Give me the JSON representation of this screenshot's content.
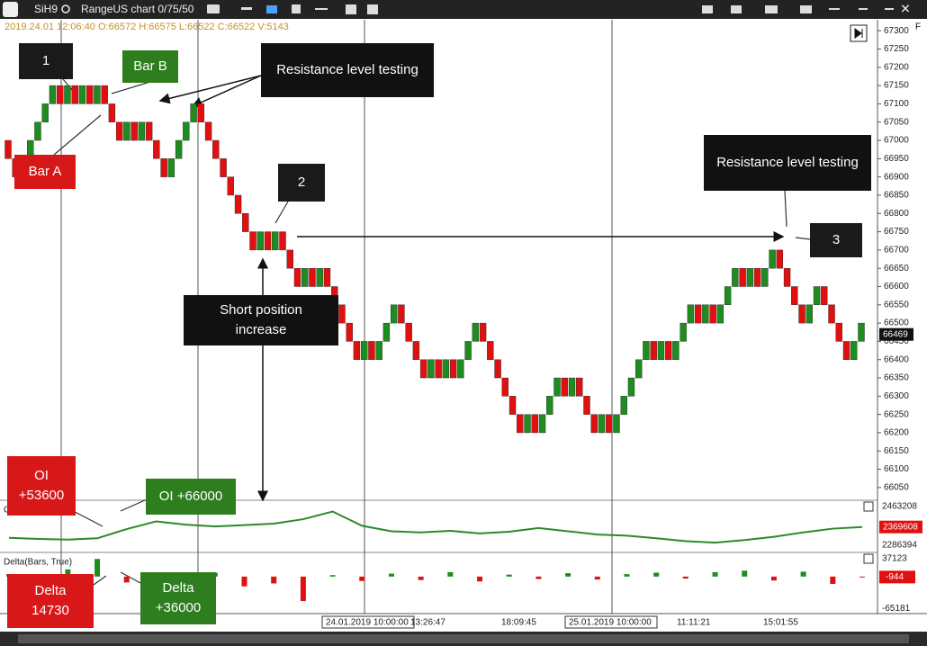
{
  "toolbar": {
    "symbol": "SiH9",
    "chart_name": "RangeUS chart 0/75/50"
  },
  "info_line": "2019.24.01 12:06:40  O:66572  H:66575  L:66522  C:66522  V:5143",
  "axis_flag": "F",
  "chart_data": {
    "type": "candlestick",
    "open": [
      67000,
      66950,
      66900,
      66950,
      67000,
      67050,
      67100,
      67150,
      67100,
      67150,
      67100,
      67150,
      67100,
      67150,
      67100,
      67050,
      67000,
      67050,
      67000,
      67050,
      67000,
      66950,
      66900,
      66950,
      67000,
      67050,
      67100,
      67050,
      67000,
      66950,
      66900,
      66850,
      66800,
      66750,
      66700,
      66750,
      66700,
      66750,
      66700,
      66650,
      66600,
      66650,
      66600,
      66650,
      66600,
      66550,
      66500,
      66450,
      66400,
      66450,
      66400,
      66450,
      66500,
      66550,
      66500,
      66450,
      66400,
      66350,
      66400,
      66350,
      66400,
      66350,
      66400,
      66450,
      66500,
      66450,
      66400,
      66350,
      66300,
      66250,
      66200,
      66250,
      66200,
      66250,
      66300,
      66350,
      66300,
      66350,
      66300,
      66250,
      66200,
      66250,
      66200,
      66250,
      66300,
      66350,
      66400,
      66450,
      66400,
      66450,
      66400,
      66450,
      66500,
      66550,
      66500,
      66550,
      66500,
      66550,
      66600,
      66650,
      66600,
      66650,
      66600,
      66650,
      66700,
      66650,
      66600,
      66550,
      66500,
      66550,
      66600,
      66550,
      66500,
      66450,
      66400,
      66450
    ],
    "close": [
      66950,
      66900,
      66950,
      67000,
      67050,
      67100,
      67150,
      67100,
      67150,
      67100,
      67150,
      67100,
      67150,
      67100,
      67050,
      67000,
      67050,
      67000,
      67050,
      67000,
      66950,
      66900,
      66950,
      67000,
      67050,
      67100,
      67050,
      67000,
      66950,
      66900,
      66850,
      66800,
      66750,
      66700,
      66750,
      66700,
      66750,
      66700,
      66650,
      66600,
      66650,
      66600,
      66650,
      66600,
      66550,
      66500,
      66450,
      66400,
      66450,
      66400,
      66450,
      66500,
      66550,
      66500,
      66450,
      66400,
      66350,
      66400,
      66350,
      66400,
      66350,
      66400,
      66450,
      66500,
      66450,
      66400,
      66350,
      66300,
      66250,
      66200,
      66250,
      66200,
      66250,
      66300,
      66350,
      66300,
      66350,
      66300,
      66250,
      66200,
      66250,
      66200,
      66250,
      66300,
      66350,
      66400,
      66450,
      66400,
      66450,
      66400,
      66450,
      66500,
      66550,
      66500,
      66550,
      66500,
      66550,
      66600,
      66650,
      66600,
      66650,
      66600,
      66650,
      66700,
      66650,
      66600,
      66550,
      66500,
      66550,
      66600,
      66550,
      66500,
      66450,
      66400,
      66450,
      66500
    ],
    "up_color": "#1e8c1e",
    "down_color": "#e01010",
    "ylim": [
      66030,
      67330
    ],
    "yticks": [
      66050,
      66100,
      66150,
      66200,
      66250,
      66300,
      66350,
      66400,
      66450,
      66500,
      66550,
      66600,
      66650,
      66700,
      66750,
      66800,
      66850,
      66900,
      66950,
      67000,
      67050,
      67100,
      67150,
      67200,
      67250,
      67300
    ],
    "last_price": 66469,
    "time_labels": [
      "24.01.2019 10:00:00",
      "13:26:47",
      "18:09:45",
      "25.01.2019 10:00:00",
      "11:11:21",
      "15:01:55"
    ]
  },
  "oi_panel": {
    "title": "OI(Bars, True)",
    "type": "line",
    "color": "#2a8a2a",
    "values": [
      2320000,
      2315000,
      2312000,
      2318000,
      2360000,
      2395000,
      2380000,
      2372000,
      2378000,
      2385000,
      2405000,
      2440000,
      2375000,
      2350000,
      2345000,
      2352000,
      2340000,
      2348000,
      2365000,
      2350000,
      2335000,
      2330000,
      2318000,
      2305000,
      2298000,
      2310000,
      2325000,
      2345000,
      2362000,
      2369608
    ],
    "ylim": [
      2270000,
      2475000
    ],
    "yticks": [
      2463208,
      2286394
    ],
    "last": 2369608
  },
  "delta_panel": {
    "title": "Delta(Bars, True)",
    "type": "bar",
    "up_color": "#1e8c1e",
    "down_color": "#e01010",
    "values": [
      5000,
      -8000,
      14730,
      36000,
      -12000,
      4000,
      -6000,
      8000,
      -20000,
      -14000,
      -50000,
      3000,
      -9000,
      6000,
      -7000,
      9000,
      -10000,
      4000,
      -5000,
      7000,
      -6000,
      5000,
      8000,
      -4000,
      9000,
      12000,
      -8000,
      10000,
      -15000,
      -944
    ],
    "ylim": [
      -72000,
      42000
    ],
    "yticks": [
      37123,
      -65181
    ],
    "last": -944
  },
  "annotations": {
    "n1": "1",
    "bar_b": "Bar B",
    "resistance_1": "Resistance level testing",
    "bar_a": "Bar A",
    "n2": "2",
    "resistance_2": "Resistance level testing",
    "n3": "3",
    "short_position": "Short position increase",
    "oi_1": "OI +53600",
    "oi_2": "OI +66000",
    "delta_1": "Delta 14730",
    "delta_2": "Delta +36000"
  }
}
